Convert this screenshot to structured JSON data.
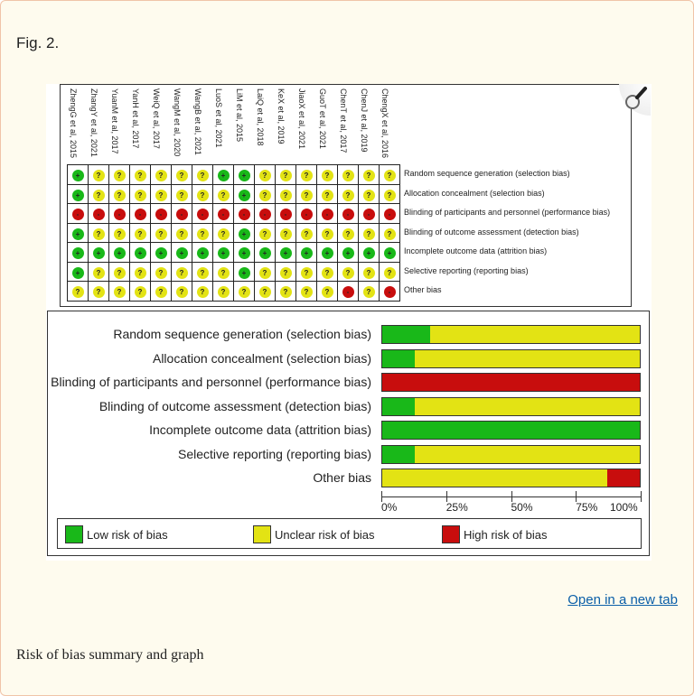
{
  "figure_label": "Fig. 2.",
  "open_link": "Open in a new tab",
  "caption": "Risk of bias summary and graph",
  "colors": {
    "low": "#19b819",
    "unclear": "#e3e314",
    "high": "#c80d0d"
  },
  "symbols": {
    "low": "+",
    "unclear": "?",
    "high": "-"
  },
  "chart_data": [
    {
      "type": "table",
      "title": "",
      "studies": [
        "ZhengG et al, 2015",
        "ZhangY et al, 2021",
        "YuanM et al, 2017",
        "YanH et al, 2017",
        "WeiQ et al, 2017",
        "WangM et al, 2020",
        "WangB et al, 2021",
        "LuoS et al, 2021",
        "LiM et al, 2015",
        "LaiQ et al, 2018",
        "KeX et al, 2019",
        "JiaoX et al, 2021",
        "GuoT et al, 2021",
        "ChenT et al, 2017",
        "ChenJ et al, 2019",
        "ChengX et al, 2016"
      ],
      "domains": [
        "Random sequence generation (selection bias)",
        "Allocation concealment (selection bias)",
        "Blinding of participants and personnel (performance bias)",
        "Blinding of outcome assessment (detection bias)",
        "Incomplete outcome data (attrition bias)",
        "Selective reporting (reporting bias)",
        "Other bias"
      ],
      "judgments": [
        [
          "low",
          "unclear",
          "unclear",
          "unclear",
          "unclear",
          "unclear",
          "unclear",
          "low",
          "low",
          "unclear",
          "unclear",
          "unclear",
          "unclear",
          "unclear",
          "unclear",
          "unclear"
        ],
        [
          "low",
          "unclear",
          "unclear",
          "unclear",
          "unclear",
          "unclear",
          "unclear",
          "unclear",
          "low",
          "unclear",
          "unclear",
          "unclear",
          "unclear",
          "unclear",
          "unclear",
          "unclear"
        ],
        [
          "high",
          "high",
          "high",
          "high",
          "high",
          "high",
          "high",
          "high",
          "high",
          "high",
          "high",
          "high",
          "high",
          "high",
          "high",
          "high"
        ],
        [
          "low",
          "unclear",
          "unclear",
          "unclear",
          "unclear",
          "unclear",
          "unclear",
          "unclear",
          "low",
          "unclear",
          "unclear",
          "unclear",
          "unclear",
          "unclear",
          "unclear",
          "unclear"
        ],
        [
          "low",
          "low",
          "low",
          "low",
          "low",
          "low",
          "low",
          "low",
          "low",
          "low",
          "low",
          "low",
          "low",
          "low",
          "low",
          "low"
        ],
        [
          "low",
          "unclear",
          "unclear",
          "unclear",
          "unclear",
          "unclear",
          "unclear",
          "unclear",
          "low",
          "unclear",
          "unclear",
          "unclear",
          "unclear",
          "unclear",
          "unclear",
          "unclear"
        ],
        [
          "unclear",
          "unclear",
          "unclear",
          "unclear",
          "unclear",
          "unclear",
          "unclear",
          "unclear",
          "unclear",
          "unclear",
          "unclear",
          "unclear",
          "unclear",
          "high",
          "unclear",
          "high"
        ]
      ]
    },
    {
      "type": "bar",
      "stacked": true,
      "orientation": "horizontal",
      "categories": [
        "Random sequence generation (selection bias)",
        "Allocation concealment (selection bias)",
        "Blinding of participants and personnel (performance bias)",
        "Blinding of outcome assessment (detection bias)",
        "Incomplete outcome data (attrition bias)",
        "Selective reporting (reporting bias)",
        "Other bias"
      ],
      "series": [
        {
          "name": "Low risk of bias",
          "values": [
            18.75,
            12.5,
            0,
            12.5,
            100,
            12.5,
            0
          ]
        },
        {
          "name": "Unclear risk of bias",
          "values": [
            81.25,
            87.5,
            0,
            87.5,
            0,
            87.5,
            87.5
          ]
        },
        {
          "name": "High risk of bias",
          "values": [
            0,
            0,
            100,
            0,
            0,
            0,
            12.5
          ]
        }
      ],
      "xlim": [
        0,
        100
      ],
      "xticks": [
        "0%",
        "25%",
        "50%",
        "75%",
        "100%"
      ],
      "legend": "bottom"
    }
  ]
}
